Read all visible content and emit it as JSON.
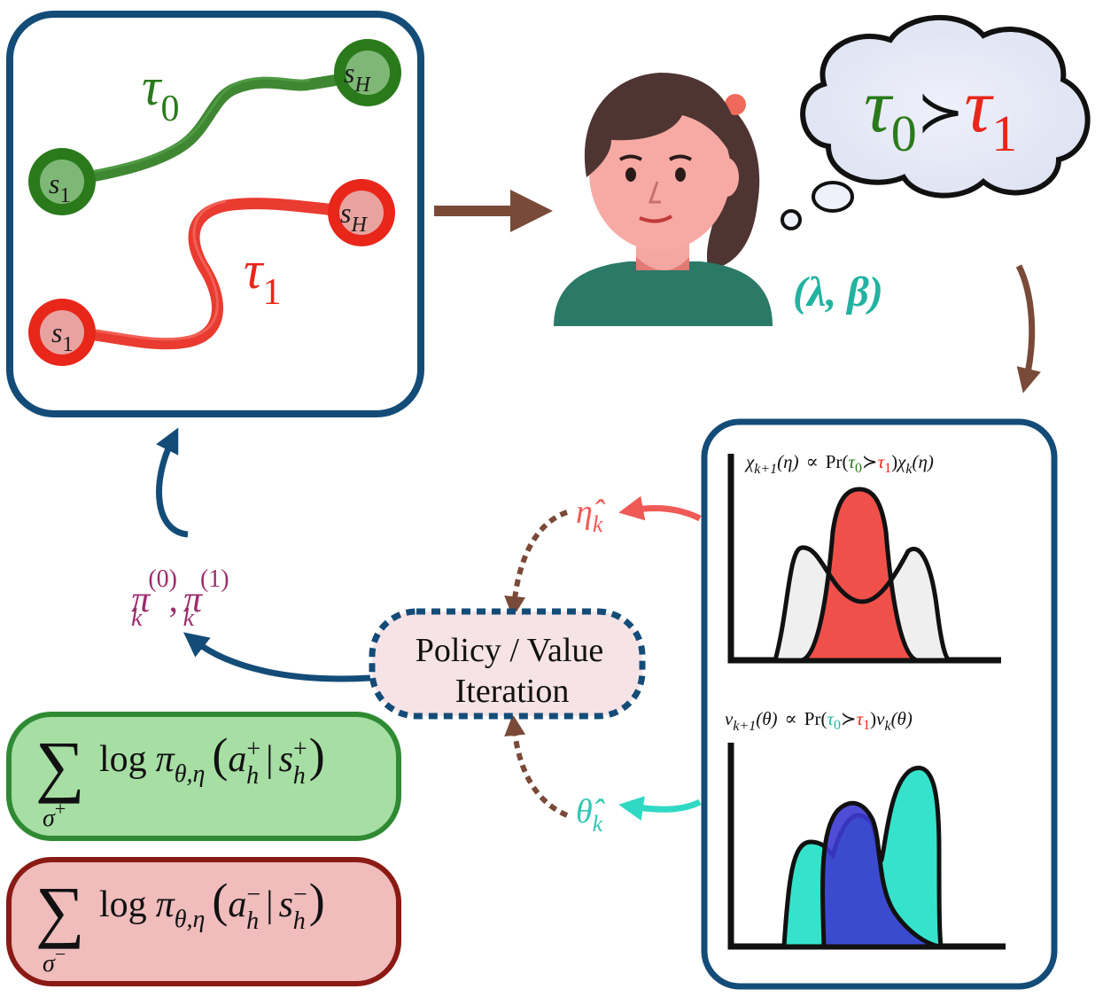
{
  "traj_panel": {
    "tau0": {
      "sym": "τ",
      "sub": "0",
      "color": "#2a7a1c"
    },
    "tau1": {
      "sym": "τ",
      "sub": "1",
      "color": "#e8261a"
    },
    "s1": {
      "sym": "s",
      "sub": "1"
    },
    "sH": {
      "sym": "s",
      "sub": "H"
    }
  },
  "thought": {
    "left_sym": "τ",
    "left_sub": "0",
    "rel": "≻",
    "right_sym": "τ",
    "right_sub": "1"
  },
  "params": {
    "text": "(λ, β)",
    "color": "#22b3a0"
  },
  "posterior_panel": {
    "eta_update": {
      "lhs_sym": "χ",
      "lhs_sub": "k+1",
      "lhs_arg": "(η)",
      "prop": "∝",
      "pr": "Pr",
      "t0": "τ",
      "t0_sub": "0",
      "rel": "≻",
      "t1": "τ",
      "t1_sub": "1",
      "rhs_sym": "χ",
      "rhs_sub": "k",
      "rhs_arg": "(η)"
    },
    "theta_update": {
      "lhs_sym": "ν",
      "lhs_sub": "k+1",
      "lhs_arg": "(θ)",
      "prop": "∝",
      "pr": "Pr",
      "t0": "τ",
      "t0_sub": "0",
      "rel": "≻",
      "t1": "τ",
      "t1_sub": "1",
      "rhs_sym": "ν",
      "rhs_sub": "k",
      "rhs_arg": "(θ)"
    }
  },
  "samples": {
    "eta_hat": {
      "sym": "η̂",
      "sub": "k",
      "color": "#ef5a56"
    },
    "theta_hat": {
      "sym": "θ̂",
      "sub": "k",
      "color": "#2fc7b3"
    }
  },
  "planner": {
    "line1": "Policy / Value",
    "line2": "Iteration"
  },
  "policies": {
    "pi": "π",
    "sub": "k",
    "sup0": "(0)",
    "sup1": "(1)",
    "sep": ",",
    "color": "#9b2d6e"
  },
  "loss_boxes": {
    "positive": {
      "sum": "∑",
      "under": "σ",
      "under_sup": "+",
      "log": "log",
      "pi": "π",
      "pi_sub": "θ,η",
      "a": "a",
      "a_sub": "h",
      "a_sup": "+",
      "bar": "|",
      "s": "s",
      "s_sub": "h",
      "s_sup": "+",
      "fill": "#a6dea4",
      "stroke": "#2f8a33"
    },
    "negative": {
      "sum": "∑",
      "under": "σ",
      "under_sup": "−",
      "log": "log",
      "pi": "π",
      "pi_sub": "θ,η",
      "a": "a",
      "a_sub": "h",
      "a_sup": "−",
      "bar": "|",
      "s": "s",
      "s_sub": "h",
      "s_sup": "−",
      "fill": "#f0bcbc",
      "stroke": "#8a1a14"
    }
  },
  "colors": {
    "panel_border": "#144c78",
    "arrow_brown": "#7a4a38",
    "green": "#2a7a1c",
    "red": "#e8261a"
  }
}
